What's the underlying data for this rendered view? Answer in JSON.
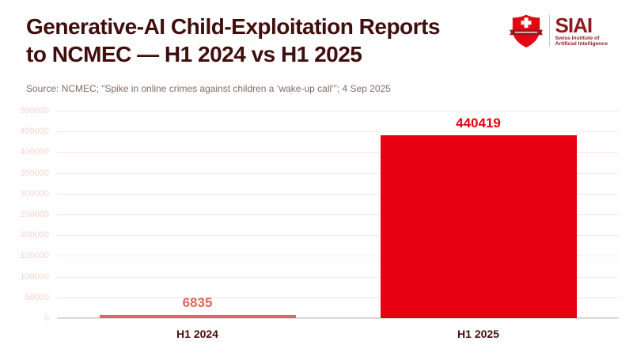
{
  "header": {
    "title_lines": [
      "Generative-AI Child-Exploitation Reports",
      "to NCMEC — H1 2024 vs H1 2025"
    ],
    "source": "Source: NCMEC; “Spike in online crimes against children a ‘wake-up call’”; 4 Sep 2025"
  },
  "logo": {
    "acronym": "SIAI",
    "name_line1": "Swiss Institute of",
    "name_line2": "Artificial Intelligence",
    "shield_color": "#e30613",
    "banner_color": "#9d151b",
    "text_color": "#8e1a1f"
  },
  "chart_data": {
    "type": "bar",
    "title": "Generative-AI Child-Exploitation Reports to NCMEC — H1 2024 vs H1 2025",
    "categories": [
      "H1 2024",
      "H1 2025"
    ],
    "values": [
      6835,
      440419
    ],
    "data_labels": [
      "6835",
      "440419"
    ],
    "bar_colors": [
      "#de6660",
      "#e60011"
    ],
    "label_colors": [
      "#de6660",
      "#e60011"
    ],
    "xlabel": "",
    "ylabel": "",
    "ylim": [
      0,
      500000
    ],
    "ytick_step": 50000,
    "grid": true,
    "legend": "none",
    "gridline_color": "#fbe5e2",
    "axis_line_color": "#d9d9d9",
    "tick_label_color": "#f6d4d0",
    "category_label_color": "#450f0e"
  }
}
